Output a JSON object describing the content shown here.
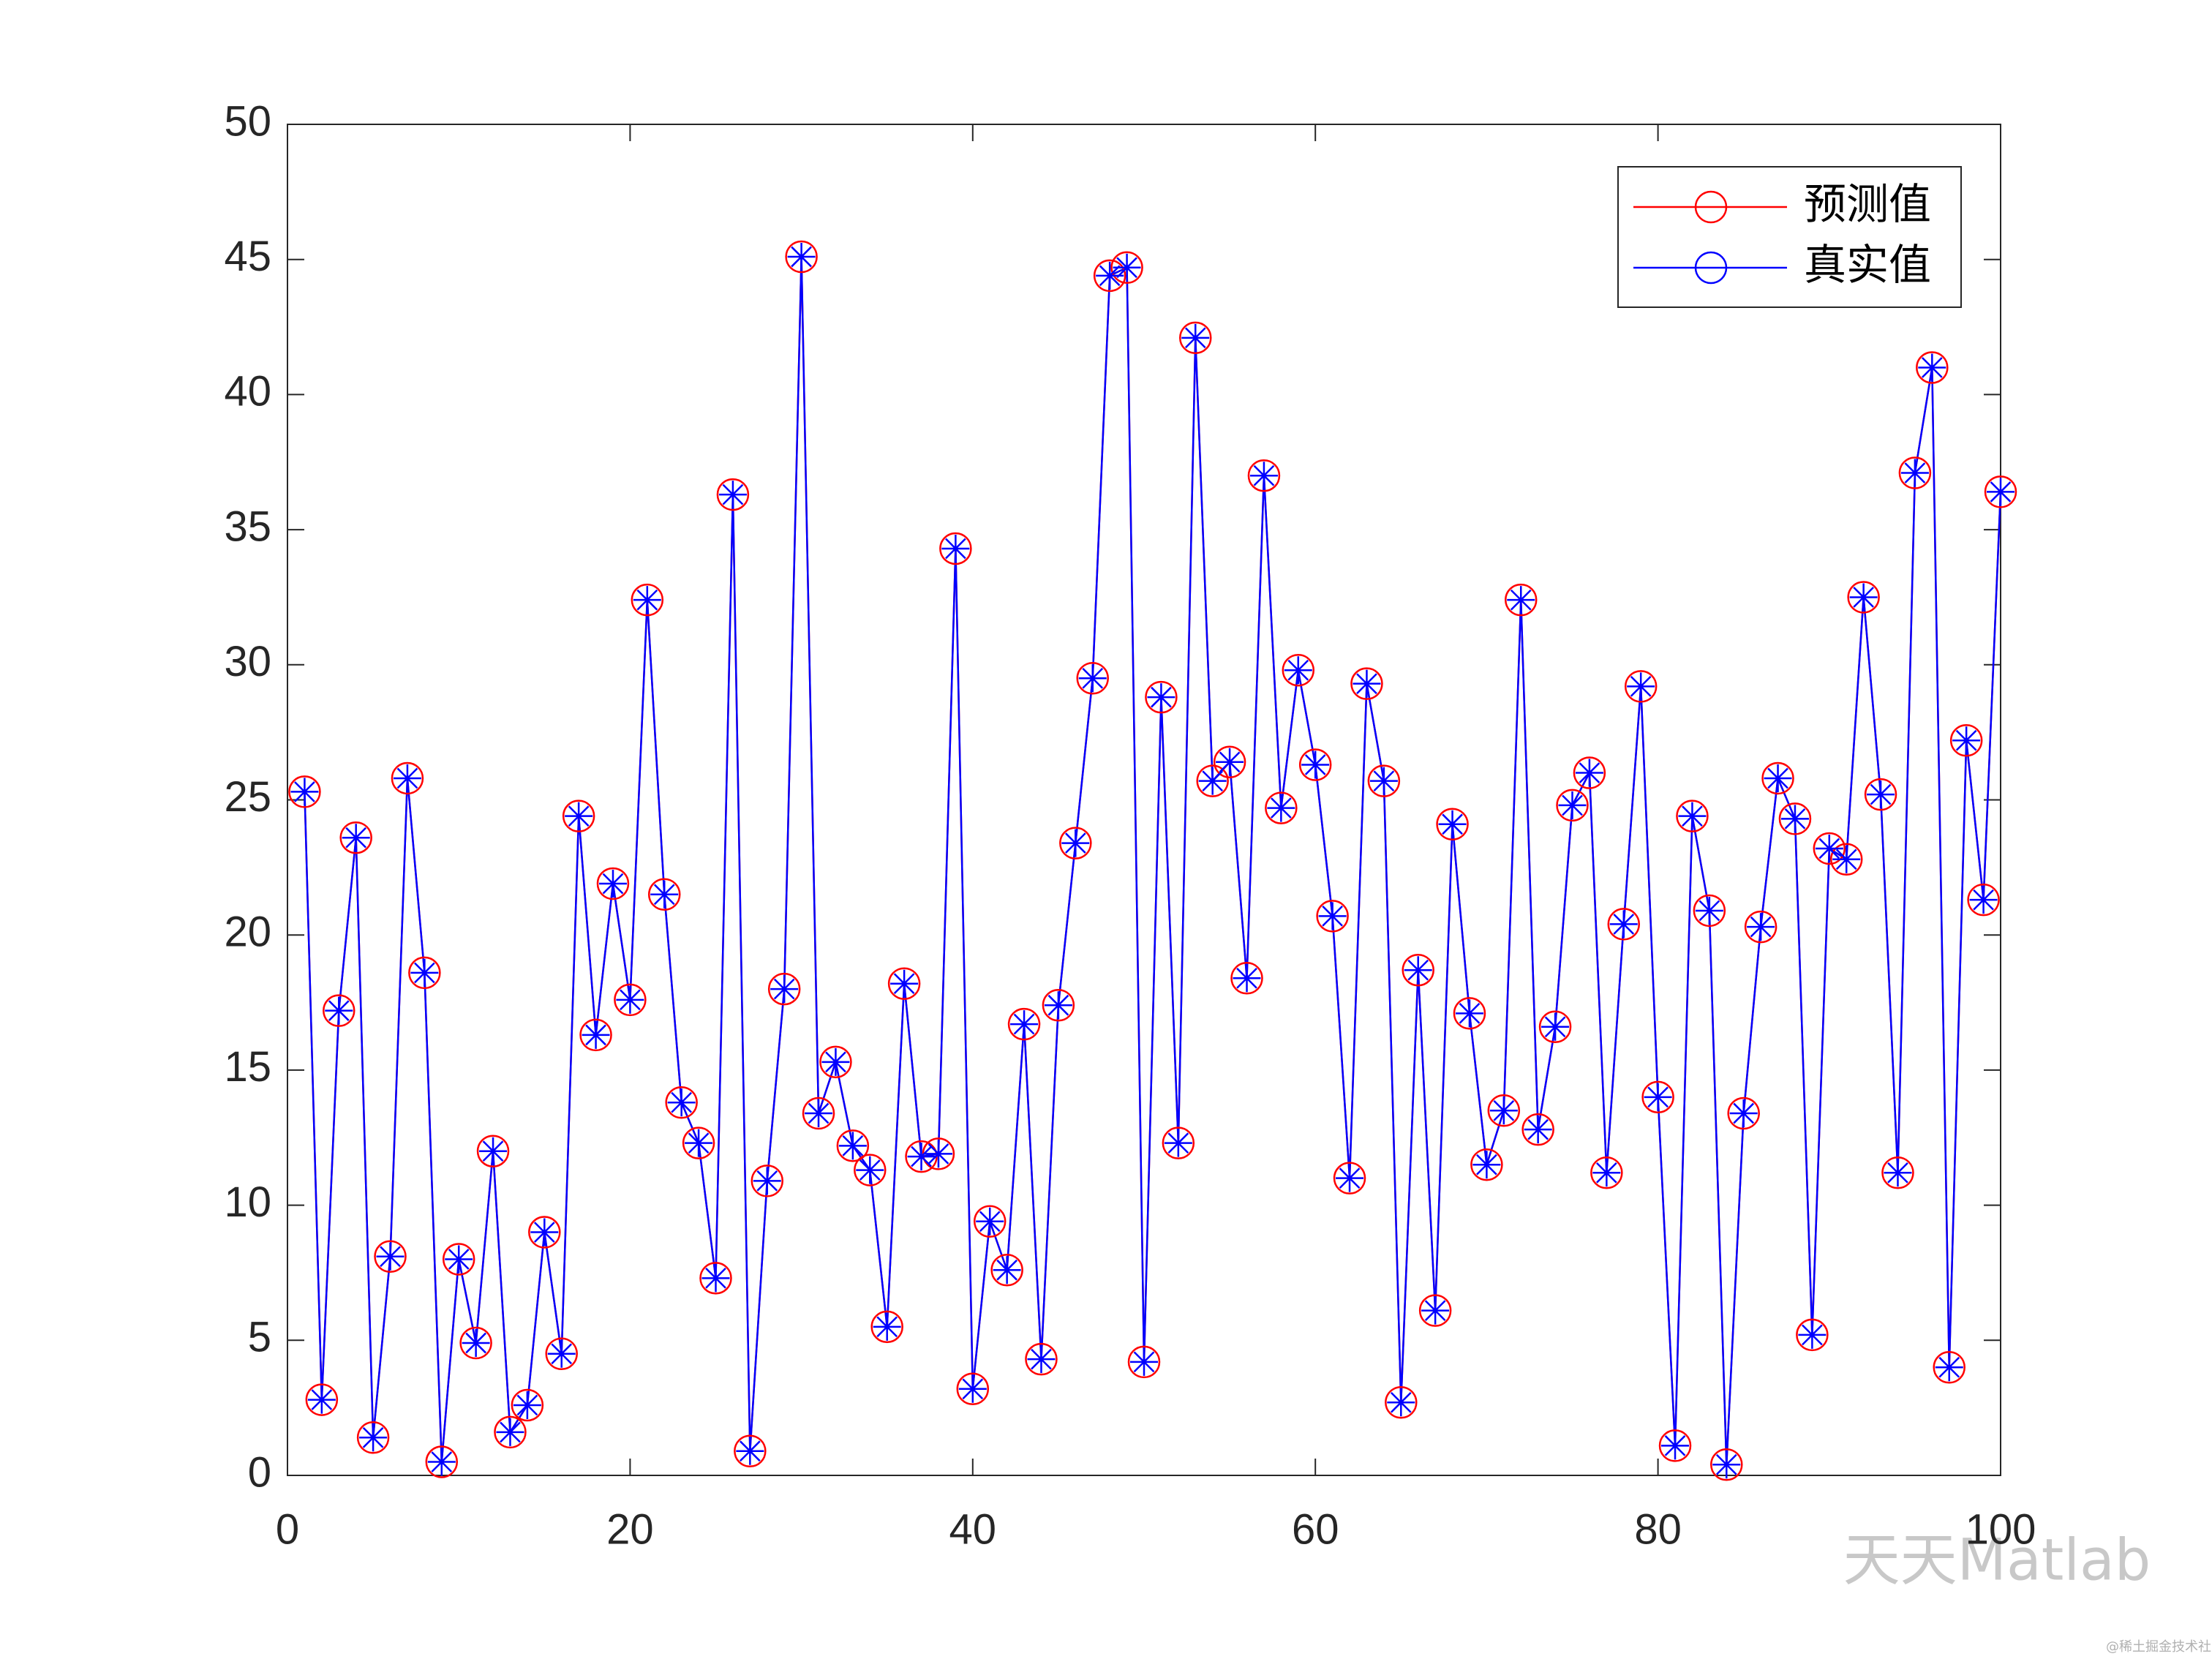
{
  "chart_data": {
    "type": "line",
    "x": [
      1,
      2,
      3,
      4,
      5,
      6,
      7,
      8,
      9,
      10,
      11,
      12,
      13,
      14,
      15,
      16,
      17,
      18,
      19,
      20,
      21,
      22,
      23,
      24,
      25,
      26,
      27,
      28,
      29,
      30,
      31,
      32,
      33,
      34,
      35,
      36,
      37,
      38,
      39,
      40,
      41,
      42,
      43,
      44,
      45,
      46,
      47,
      48,
      49,
      50,
      51,
      52,
      53,
      54,
      55,
      56,
      57,
      58,
      59,
      60,
      61,
      62,
      63,
      64,
      65,
      66,
      67,
      68,
      69,
      70,
      71,
      72,
      73,
      74,
      75,
      76,
      77,
      78,
      79,
      80,
      81,
      82,
      83,
      84,
      85,
      86,
      87,
      88,
      89,
      90,
      91,
      92,
      93,
      94,
      95,
      96,
      97,
      98,
      99,
      100
    ],
    "series": [
      {
        "name": "预测值",
        "color": "#ff0000",
        "marker": "circle",
        "values": [
          25.3,
          2.8,
          17.2,
          23.6,
          1.4,
          8.1,
          25.8,
          18.6,
          0.5,
          8.0,
          4.9,
          12.0,
          1.6,
          2.6,
          9.0,
          4.5,
          24.4,
          16.3,
          21.9,
          17.6,
          32.4,
          21.5,
          13.8,
          12.3,
          7.3,
          36.3,
          0.9,
          10.9,
          18.0,
          45.1,
          13.4,
          15.3,
          12.2,
          11.3,
          5.5,
          18.2,
          11.8,
          11.9,
          34.3,
          3.2,
          9.4,
          7.6,
          16.7,
          4.3,
          17.4,
          23.4,
          29.5,
          44.4,
          44.7,
          4.2,
          28.8,
          12.3,
          42.1,
          25.7,
          26.4,
          18.4,
          37.0,
          24.7,
          29.8,
          26.3,
          20.7,
          11.0,
          29.3,
          25.7,
          2.7,
          18.7,
          6.1,
          24.1,
          17.1,
          11.5,
          13.5,
          32.4,
          12.8,
          16.6,
          24.8,
          26.0,
          11.2,
          20.4,
          29.2,
          14.0,
          1.1,
          24.4,
          20.9,
          0.4,
          13.4,
          20.3,
          25.8,
          24.3,
          5.2,
          23.2,
          22.8,
          32.5,
          25.2,
          11.2,
          37.1,
          41.0,
          4.0,
          27.2,
          21.3,
          36.4
        ]
      },
      {
        "name": "真实值",
        "color": "#0000ff",
        "marker": "asterisk",
        "values": [
          25.3,
          2.8,
          17.2,
          23.6,
          1.4,
          8.1,
          25.8,
          18.6,
          0.5,
          8.0,
          4.9,
          12.0,
          1.6,
          2.6,
          9.0,
          4.5,
          24.4,
          16.3,
          21.9,
          17.6,
          32.4,
          21.5,
          13.8,
          12.3,
          7.3,
          36.3,
          0.9,
          10.9,
          18.0,
          45.1,
          13.4,
          15.3,
          12.2,
          11.3,
          5.5,
          18.2,
          11.8,
          11.9,
          34.3,
          3.2,
          9.4,
          7.6,
          16.7,
          4.3,
          17.4,
          23.4,
          29.5,
          44.4,
          44.7,
          4.2,
          28.8,
          12.3,
          42.1,
          25.7,
          26.4,
          18.4,
          37.0,
          24.7,
          29.8,
          26.3,
          20.7,
          11.0,
          29.3,
          25.7,
          2.7,
          18.7,
          6.1,
          24.1,
          17.1,
          11.5,
          13.5,
          32.4,
          12.8,
          16.6,
          24.8,
          26.0,
          11.2,
          20.4,
          29.2,
          14.0,
          1.1,
          24.4,
          20.9,
          0.4,
          13.4,
          20.3,
          25.8,
          24.3,
          5.2,
          23.2,
          22.8,
          32.5,
          25.2,
          11.2,
          37.1,
          41.0,
          4.0,
          27.2,
          21.3,
          36.4
        ]
      }
    ],
    "xlim": [
      0,
      100
    ],
    "xticks": [
      0,
      20,
      40,
      60,
      80,
      100
    ],
    "ylim": [
      0,
      50
    ],
    "yticks": [
      0,
      5,
      10,
      15,
      20,
      25,
      30,
      35,
      40,
      45,
      50
    ],
    "grid": false,
    "legend": "upper right",
    "watermark": "天天Matlab",
    "credit": "@稀土掘金技术社区"
  }
}
